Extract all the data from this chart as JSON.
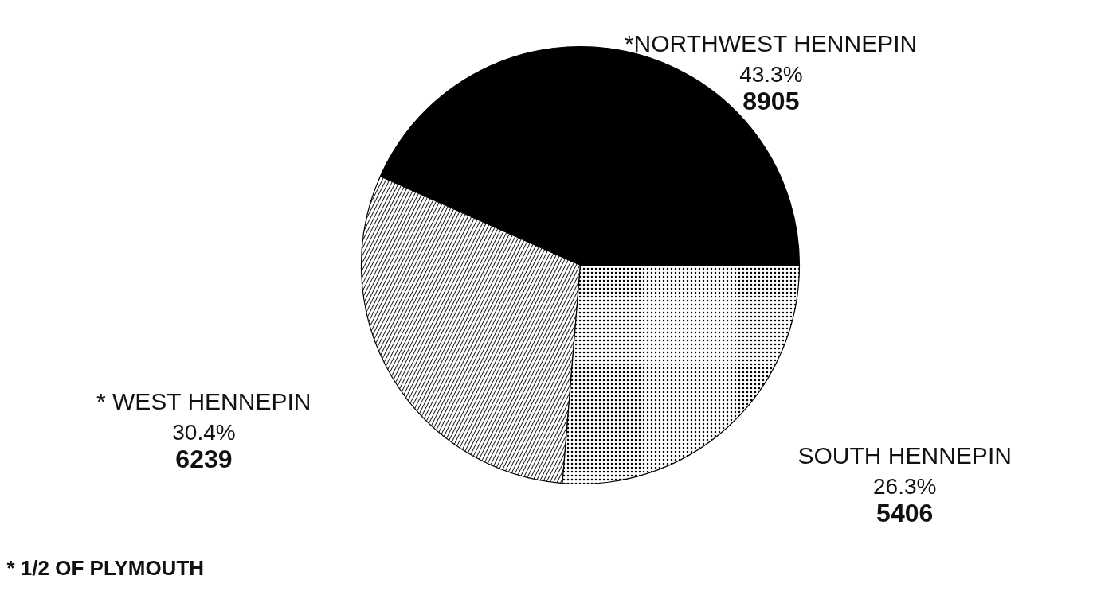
{
  "chart_data": {
    "type": "pie",
    "categories": [
      "*NORTHWEST HENNEPIN",
      "* WEST HENNEPIN",
      "SOUTH HENNEPIN"
    ],
    "values": [
      8905,
      6239,
      5406
    ],
    "data_labels": true,
    "colors": [
      "#000000",
      "#ffffff",
      "#ffffff"
    ],
    "annotations": [
      {
        "text": "43.3%",
        "x": "*NORTHWEST HENNEPIN"
      },
      {
        "text": "30.4%",
        "x": "* WEST HENNEPIN"
      },
      {
        "text": "26.3%",
        "x": "SOUTH HENNEPIN"
      },
      "* 1/2 OF PLYMOUTH"
    ]
  }
}
